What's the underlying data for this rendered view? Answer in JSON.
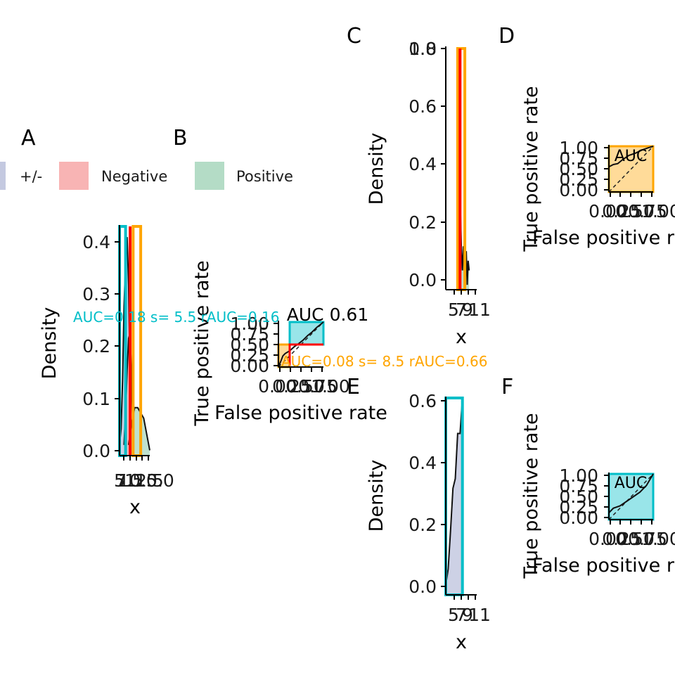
{
  "legend": {
    "items": [
      {
        "label": "+/-",
        "color": "#c4c9e0"
      },
      {
        "label": "Negative",
        "color": "#f8b4b4"
      },
      {
        "label": "Positive",
        "color": "#b4dcc6"
      }
    ]
  },
  "colors": {
    "orange": "#ffa500",
    "cyan": "#00bec8",
    "red": "#ff0000",
    "neutral_fill": "#c4c9e0",
    "negative_fill": "#f8b4b4",
    "positive_fill": "#b4dcc6"
  },
  "panels": {
    "A": {
      "tag": "A",
      "xlabel": "x",
      "ylabel": "Density",
      "xticks": [
        "5",
        "7.5",
        "10.0",
        "12.5",
        "15.0"
      ],
      "yticks": [
        "0.0",
        "0.1",
        "0.2",
        "0.3",
        "0.4"
      ]
    },
    "B": {
      "tag": "B",
      "xlabel": "False positive rate",
      "ylabel": "True positive rate",
      "xticks": [
        "0.00",
        "0.25",
        "0.50",
        "0.75",
        "1.00"
      ],
      "yticks": [
        "0.00",
        "0.25",
        "0.50",
        "0.75",
        "1.00"
      ],
      "auc_label": "AUC 0.61",
      "annotation_cyan": "AUC=0.18 s=   5.5  rAUC=0.16",
      "annotation_orange": "AUC=0.08 s=   8.5  rAUC=0.66"
    },
    "C": {
      "tag": "C",
      "xlabel": "x",
      "ylabel": "Density",
      "xticks": [
        "5",
        "7",
        "9",
        "11"
      ],
      "yticks": [
        "0.0",
        "0.2",
        "0.4",
        "0.6",
        "0.8",
        "1.0"
      ]
    },
    "D": {
      "tag": "D",
      "xlabel": "False positive rate",
      "ylabel": "True positive rate",
      "xticks": [
        "0.00",
        "0.25",
        "0.50",
        "0.75",
        "1.00"
      ],
      "yticks": [
        "0.00",
        "0.25",
        "0.50",
        "0.75",
        "1.00"
      ],
      "auc_label": "AUC"
    },
    "E": {
      "tag": "E",
      "xlabel": "x",
      "ylabel": "Density",
      "xticks": [
        "5",
        "7",
        "9",
        "11"
      ],
      "yticks": [
        "0.0",
        "0.2",
        "0.4",
        "0.6"
      ]
    },
    "F": {
      "tag": "F",
      "xlabel": "False positive rate",
      "ylabel": "True positive rate",
      "xticks": [
        "0.00",
        "0.25",
        "0.50",
        "0.75",
        "1.00"
      ],
      "yticks": [
        "0.00",
        "0.25",
        "0.50",
        "0.75",
        "1.00"
      ],
      "auc_label": "AUC"
    }
  },
  "chart_data": [
    {
      "panel": "A",
      "type": "area",
      "xlabel": "x",
      "ylabel": "Density",
      "xlim": [
        5,
        15
      ],
      "ylim": [
        0,
        0.43
      ],
      "series": [
        {
          "name": "+/-",
          "x": [
            5.0,
            5.5,
            6.0,
            6.5,
            7.0,
            7.5,
            8.0,
            8.5,
            9.0
          ],
          "values": [
            0.02,
            0.05,
            0.14,
            0.28,
            0.36,
            0.41,
            0.32,
            0.12,
            0.03
          ]
        },
        {
          "name": "Negative",
          "x": [
            6.5,
            7.0,
            7.5,
            8.0,
            8.5,
            9.0,
            9.5
          ],
          "values": [
            0.02,
            0.08,
            0.16,
            0.22,
            0.23,
            0.14,
            0.04
          ]
        },
        {
          "name": "Positive",
          "x": [
            8.0,
            9.0,
            10.0,
            11.0,
            12.0,
            13.0,
            14.0,
            15.0
          ],
          "values": [
            0.02,
            0.06,
            0.09,
            0.09,
            0.08,
            0.07,
            0.04,
            0.01
          ]
        }
      ],
      "regions": [
        {
          "color": "cyan",
          "x": [
            5.0,
            7.0
          ],
          "y": [
            0,
            0.43
          ]
        },
        {
          "color": "orange",
          "x": [
            9.5,
            12.0
          ],
          "y": [
            0,
            0.43
          ]
        }
      ],
      "vline": {
        "color": "red",
        "x": 8.5
      }
    },
    {
      "panel": "B",
      "type": "line",
      "xlabel": "False positive rate",
      "ylabel": "True positive rate",
      "xlim": [
        0,
        1
      ],
      "ylim": [
        0,
        1
      ],
      "series": [
        {
          "x": [
            0,
            0.05,
            0.1,
            0.15,
            0.25,
            0.35,
            0.45,
            0.55,
            0.65,
            0.75,
            0.85,
            0.95,
            1.0
          ],
          "values": [
            0,
            0.12,
            0.25,
            0.3,
            0.36,
            0.45,
            0.52,
            0.6,
            0.7,
            0.78,
            0.88,
            0.96,
            1.0
          ]
        }
      ],
      "red_step": {
        "x": [
          0.25,
          0.25,
          1.0
        ],
        "y": [
          0,
          0.5,
          0.5
        ]
      },
      "regions": [
        {
          "color": "cyan",
          "x": [
            0.25,
            1.0
          ],
          "y": [
            0.5,
            1.0
          ]
        },
        {
          "color": "orange",
          "x": [
            0,
            0.25
          ],
          "y": [
            0,
            0.5
          ]
        }
      ],
      "auc": 0.61
    },
    {
      "panel": "C",
      "type": "area",
      "xlabel": "x",
      "ylabel": "Density",
      "xlim": [
        5,
        11.5
      ],
      "ylim": [
        0,
        1.0
      ],
      "series": [
        {
          "name": "Positive",
          "x": [
            7.9,
            8.1,
            8.3,
            8.5,
            8.7,
            8.9,
            9.1,
            9.3,
            9.5,
            9.7,
            9.9
          ],
          "values": [
            0.05,
            0.31,
            0.15,
            0.08,
            0.18,
            0.1,
            0.03,
            0.16,
            0.02,
            0.12,
            0.08
          ]
        }
      ],
      "regions": [
        {
          "color": "orange",
          "x": [
            7.5,
            9.0
          ],
          "y": [
            0,
            1.0
          ]
        }
      ],
      "vline": {
        "color": "red",
        "x": 8.0
      }
    },
    {
      "panel": "D",
      "type": "line",
      "xlabel": "False positive rate",
      "ylabel": "True positive rate",
      "xlim": [
        0,
        1
      ],
      "ylim": [
        0,
        1
      ],
      "series": [
        {
          "x": [
            0,
            0.1,
            0.2,
            0.3,
            0.45,
            0.6,
            0.75,
            0.9,
            1.0
          ],
          "values": [
            0.55,
            0.6,
            0.62,
            0.7,
            0.8,
            0.85,
            0.92,
            0.97,
            1.0
          ]
        }
      ],
      "regions": [
        {
          "color": "orange",
          "x": [
            0,
            1
          ],
          "y": [
            0,
            1
          ]
        }
      ]
    },
    {
      "panel": "E",
      "type": "area",
      "xlabel": "x",
      "ylabel": "Density",
      "xlim": [
        5,
        11.5
      ],
      "ylim": [
        0,
        0.61
      ],
      "series": [
        {
          "name": "+/-",
          "x": [
            5.0,
            5.5,
            6.0,
            6.5,
            7.0,
            7.5,
            8.0,
            8.5
          ],
          "values": [
            0.03,
            0.08,
            0.2,
            0.33,
            0.36,
            0.5,
            0.5,
            0.61
          ]
        }
      ],
      "regions": [
        {
          "color": "cyan",
          "x": [
            5.0,
            8.5
          ],
          "y": [
            0,
            0.61
          ]
        }
      ]
    },
    {
      "panel": "F",
      "type": "line",
      "xlabel": "False positive rate",
      "ylabel": "True positive rate",
      "xlim": [
        0,
        1
      ],
      "ylim": [
        0,
        1
      ],
      "series": [
        {
          "x": [
            0,
            0.1,
            0.25,
            0.4,
            0.55,
            0.7,
            0.85,
            1.0
          ],
          "values": [
            0.15,
            0.25,
            0.3,
            0.4,
            0.5,
            0.6,
            0.75,
            1.0
          ]
        }
      ],
      "regions": [
        {
          "color": "cyan",
          "x": [
            0,
            1
          ],
          "y": [
            0,
            1
          ]
        }
      ]
    }
  ]
}
